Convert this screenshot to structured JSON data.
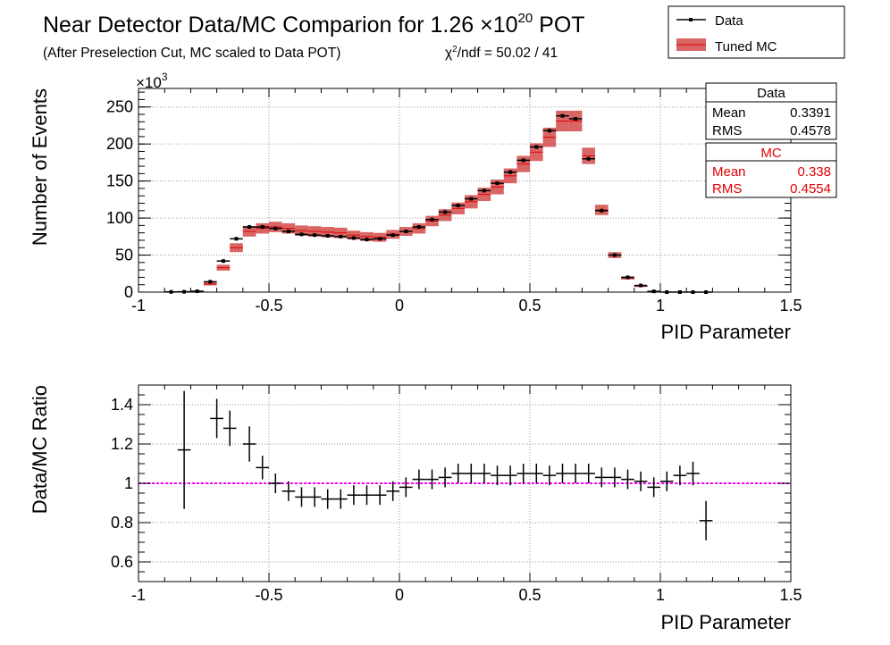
{
  "title": {
    "main": "Near Detector Data/MC Comparion for 1.26 ",
    "times": "×10",
    "exp": "20",
    "unit": " POT",
    "subtitle": "(After Preselection Cut, MC scaled to Data POT)",
    "chi_prefix": "χ",
    "chi_exp": "2",
    "chi_rest": "/ndf = 50.02 / 41"
  },
  "legend": {
    "data_label": "Data",
    "mc_label": "Tuned MC"
  },
  "stats": {
    "data": {
      "title": "Data",
      "mean_label": "Mean",
      "mean": "0.3391",
      "rms_label": "RMS",
      "rms": "0.4578"
    },
    "mc": {
      "title": "MC",
      "mean_label": "Mean",
      "mean": "0.338",
      "rms_label": "RMS",
      "rms": "0.4554"
    }
  },
  "colors": {
    "data": "#000000",
    "mc_band": "#d24a4a",
    "mc_line": "#e00000",
    "ratio_line": "#ff00ff",
    "grid": "#9a9a9a"
  },
  "chart_data": [
    {
      "type": "histogram",
      "xlabel": "PID Parameter",
      "ylabel": "Number of Events",
      "y_multiplier": "×10",
      "y_multiplier_exp": "3",
      "xlim": [
        -1,
        1.5
      ],
      "ylim": [
        0,
        275
      ],
      "xticks": [
        -1,
        -0.5,
        0,
        0.5,
        1,
        1.5
      ],
      "xtick_labels": [
        "-1",
        "-0.5",
        "0",
        "0.5",
        "1",
        "1.5"
      ],
      "yticks": [
        0,
        50,
        100,
        150,
        200,
        250
      ],
      "ytick_labels": [
        "0",
        "50",
        "100",
        "150",
        "200",
        "250"
      ],
      "grid": true,
      "legend_position": "top-right",
      "x": [
        -0.975,
        -0.925,
        -0.875,
        -0.825,
        -0.775,
        -0.725,
        -0.675,
        -0.625,
        -0.575,
        -0.525,
        -0.475,
        -0.425,
        -0.375,
        -0.325,
        -0.275,
        -0.225,
        -0.175,
        -0.125,
        -0.075,
        -0.025,
        0.025,
        0.075,
        0.125,
        0.175,
        0.225,
        0.275,
        0.325,
        0.375,
        0.425,
        0.475,
        0.525,
        0.575,
        0.625,
        0.675,
        0.725,
        0.775,
        0.825,
        0.875,
        0.925,
        0.975,
        1.025,
        1.075,
        1.125,
        1.175,
        1.225,
        1.275,
        1.325,
        1.375,
        1.425,
        1.475
      ],
      "series": [
        {
          "name": "Data",
          "values": [
            0,
            0,
            0.3,
            0.5,
            1.2,
            14,
            42,
            72,
            88,
            88,
            86,
            82,
            78,
            77,
            76,
            75,
            73,
            71,
            72,
            77,
            82,
            88,
            98,
            108,
            117,
            126,
            137,
            147,
            162,
            178,
            196,
            218,
            238,
            234,
            180,
            110,
            50,
            20,
            9,
            1,
            0,
            0,
            0,
            0,
            0,
            0,
            0,
            0,
            0,
            0
          ]
        },
        {
          "name": "Tuned MC",
          "values": [
            0,
            0,
            0.3,
            0.4,
            1.0,
            11,
            33,
            60,
            82,
            86,
            88,
            86,
            83,
            82,
            81,
            80,
            77,
            75,
            74,
            78,
            82,
            86,
            96,
            104,
            113,
            122,
            132,
            142,
            157,
            173,
            189,
            209,
            231,
            231,
            184,
            111,
            50,
            19,
            8,
            1,
            0,
            0,
            0,
            0,
            0,
            0,
            0,
            0,
            0,
            0
          ],
          "errors": [
            0,
            0,
            0.1,
            0.1,
            0.3,
            2,
            4,
            6,
            7,
            7,
            7,
            7,
            7,
            7,
            7,
            7,
            6,
            6,
            6,
            6,
            6,
            7,
            7,
            8,
            8,
            9,
            9,
            10,
            10,
            11,
            12,
            13,
            14,
            14,
            11,
            7,
            4,
            2,
            1,
            0.2,
            0,
            0,
            0,
            0,
            0,
            0,
            0,
            0,
            0,
            0
          ]
        }
      ]
    },
    {
      "type": "ratio",
      "xlabel": "PID Parameter",
      "ylabel": "Data/MC Ratio",
      "xlim": [
        -1,
        1.5
      ],
      "ylim": [
        0.5,
        1.5
      ],
      "xticks": [
        -1,
        -0.5,
        0,
        0.5,
        1,
        1.5
      ],
      "xtick_labels": [
        "-1",
        "-0.5",
        "0",
        "0.5",
        "1",
        "1.5"
      ],
      "yticks": [
        0.6,
        0.8,
        1.0,
        1.2,
        1.4
      ],
      "ytick_labels": [
        "0.6",
        "0.8",
        "1",
        "1.2",
        "1.4"
      ],
      "grid": true,
      "reference_line": 1.0,
      "points": [
        {
          "x": -0.825,
          "y": 1.17,
          "err": 0.3
        },
        {
          "x": -0.7,
          "y": 1.33,
          "err": 0.1
        },
        {
          "x": -0.65,
          "y": 1.28,
          "err": 0.09
        },
        {
          "x": -0.575,
          "y": 1.2,
          "err": 0.09
        },
        {
          "x": -0.525,
          "y": 1.08,
          "err": 0.06
        },
        {
          "x": -0.475,
          "y": 1.0,
          "err": 0.05
        },
        {
          "x": -0.425,
          "y": 0.96,
          "err": 0.05
        },
        {
          "x": -0.375,
          "y": 0.93,
          "err": 0.05
        },
        {
          "x": -0.325,
          "y": 0.93,
          "err": 0.05
        },
        {
          "x": -0.275,
          "y": 0.92,
          "err": 0.05
        },
        {
          "x": -0.225,
          "y": 0.92,
          "err": 0.05
        },
        {
          "x": -0.175,
          "y": 0.94,
          "err": 0.05
        },
        {
          "x": -0.125,
          "y": 0.94,
          "err": 0.05
        },
        {
          "x": -0.075,
          "y": 0.94,
          "err": 0.05
        },
        {
          "x": -0.025,
          "y": 0.96,
          "err": 0.05
        },
        {
          "x": 0.025,
          "y": 0.98,
          "err": 0.05
        },
        {
          "x": 0.075,
          "y": 1.02,
          "err": 0.05
        },
        {
          "x": 0.125,
          "y": 1.02,
          "err": 0.05
        },
        {
          "x": 0.175,
          "y": 1.03,
          "err": 0.05
        },
        {
          "x": 0.225,
          "y": 1.05,
          "err": 0.05
        },
        {
          "x": 0.275,
          "y": 1.05,
          "err": 0.05
        },
        {
          "x": 0.325,
          "y": 1.05,
          "err": 0.05
        },
        {
          "x": 0.375,
          "y": 1.04,
          "err": 0.05
        },
        {
          "x": 0.425,
          "y": 1.04,
          "err": 0.05
        },
        {
          "x": 0.475,
          "y": 1.05,
          "err": 0.05
        },
        {
          "x": 0.525,
          "y": 1.05,
          "err": 0.05
        },
        {
          "x": 0.575,
          "y": 1.04,
          "err": 0.05
        },
        {
          "x": 0.625,
          "y": 1.05,
          "err": 0.05
        },
        {
          "x": 0.675,
          "y": 1.05,
          "err": 0.05
        },
        {
          "x": 0.725,
          "y": 1.05,
          "err": 0.05
        },
        {
          "x": 0.775,
          "y": 1.03,
          "err": 0.05
        },
        {
          "x": 0.825,
          "y": 1.03,
          "err": 0.05
        },
        {
          "x": 0.875,
          "y": 1.02,
          "err": 0.05
        },
        {
          "x": 0.925,
          "y": 1.01,
          "err": 0.05
        },
        {
          "x": 0.975,
          "y": 0.98,
          "err": 0.05
        },
        {
          "x": 1.025,
          "y": 1.01,
          "err": 0.05
        },
        {
          "x": 1.075,
          "y": 1.04,
          "err": 0.05
        },
        {
          "x": 1.125,
          "y": 1.05,
          "err": 0.06
        },
        {
          "x": 1.175,
          "y": 0.81,
          "err": 0.1
        }
      ]
    }
  ]
}
